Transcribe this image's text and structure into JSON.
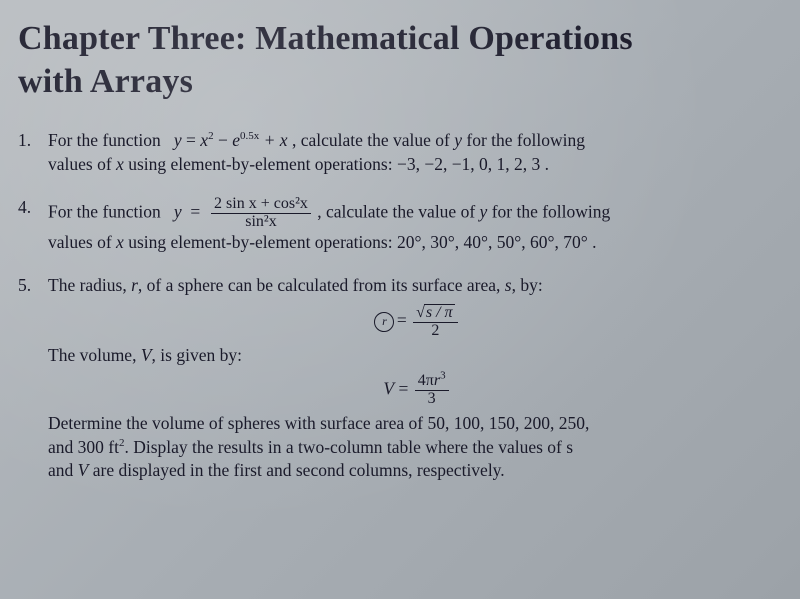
{
  "chapter": {
    "title_line1": "Chapter Three: Mathematical Operations",
    "title_line2": "with Arrays"
  },
  "problems": {
    "p1": {
      "number": "1.",
      "lead": "For the function",
      "eq_lhs": "y",
      "eq_rhs_a": "x",
      "eq_exp1": "2",
      "eq_minus": " − ",
      "eq_e": "e",
      "eq_exp2": "0.5x",
      "eq_plus_x": " + x",
      "tail1": " , calculate the value of ",
      "y1": "y",
      "tail2": " for the following",
      "line2a": "values of ",
      "x1": "x",
      "line2b": " using element-by-element operations:  ",
      "values": "−3, −2, −1, 0, 1, 2, 3 ."
    },
    "p4": {
      "number": "4.",
      "lead": "For the function",
      "y": "y",
      "frac_top": "2 sin x + cos²x",
      "frac_bot": "sin²x",
      "tail1": ", calculate the value of ",
      "yvar": "y",
      "tail2": " for the following",
      "line2a": "values of ",
      "x": "x",
      "line2b": " using element-by-element operations: ",
      "values": "20°, 30°, 40°, 50°, 60°, 70° ."
    },
    "p5": {
      "number": "5.",
      "line1a": "The radius, ",
      "r": "r",
      "line1b": ", of a sphere can be calculated from its surface area, ",
      "s": "s",
      "line1c": ", by:",
      "eq1_ring": "r",
      "eq1_eq": "=",
      "eq1_top_radic": "√",
      "eq1_top_inner": "s / π",
      "eq1_bot": "2",
      "line2": "The volume, ",
      "V": "V",
      "line2b": ", is given by:",
      "eq2_lhs": "V",
      "eq2_eq": " = ",
      "eq2_top_a": "4π",
      "eq2_top_r": "r",
      "eq2_top_exp": "3",
      "eq2_bot": "3",
      "para_a": "Determine the volume of spheres with surface area of 50, 100, 150, 200, 250,",
      "para_b1": "and 300 ft",
      "para_b_exp": "2",
      "para_b2": ". Display the results in a two-column table where the values of s",
      "para_c1": "and ",
      "para_c_V": "V",
      "para_c2": " are displayed in the first and second columns, respectively."
    }
  }
}
